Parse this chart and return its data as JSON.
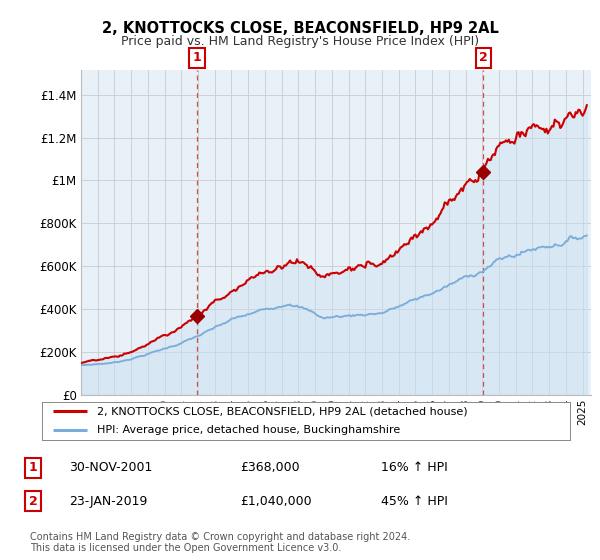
{
  "title_line1": "2, KNOTTOCKS CLOSE, BEACONSFIELD, HP9 2AL",
  "title_line2": "Price paid vs. HM Land Registry's House Price Index (HPI)",
  "xlim_start": 1995.0,
  "xlim_end": 2025.5,
  "ylim_min": 0,
  "ylim_max": 1500000,
  "yticks": [
    0,
    200000,
    400000,
    600000,
    800000,
    1000000,
    1200000,
    1400000
  ],
  "ytick_labels": [
    "£0",
    "£200K",
    "£400K",
    "£600K",
    "£800K",
    "£1M",
    "£1.2M",
    "£1.4M"
  ],
  "xtick_years": [
    1995,
    1996,
    1997,
    1998,
    1999,
    2000,
    2001,
    2002,
    2003,
    2004,
    2005,
    2006,
    2007,
    2008,
    2009,
    2010,
    2011,
    2012,
    2013,
    2014,
    2015,
    2016,
    2017,
    2018,
    2019,
    2020,
    2021,
    2022,
    2023,
    2024,
    2025
  ],
  "transaction1_x": 2001.917,
  "transaction1_y": 368000,
  "transaction2_x": 2019.07,
  "transaction2_y": 1040000,
  "transaction1_date": "30-NOV-2001",
  "transaction1_price": "£368,000",
  "transaction1_hpi": "16% ↑ HPI",
  "transaction2_date": "23-JAN-2019",
  "transaction2_price": "£1,040,000",
  "transaction2_hpi": "45% ↑ HPI",
  "line_color_property": "#cc0000",
  "line_color_hpi": "#7aacdc",
  "fill_color_hpi": "#ddeeff",
  "marker_color": "#990000",
  "vline_color": "#cc3333",
  "box_color": "#cc0000",
  "legend_line1": "2, KNOTTOCKS CLOSE, BEACONSFIELD, HP9 2AL (detached house)",
  "legend_line2": "HPI: Average price, detached house, Buckinghamshire",
  "footnote": "Contains HM Land Registry data © Crown copyright and database right 2024.\nThis data is licensed under the Open Government Licence v3.0.",
  "background_color": "#ffffff",
  "grid_color": "#cccccc"
}
